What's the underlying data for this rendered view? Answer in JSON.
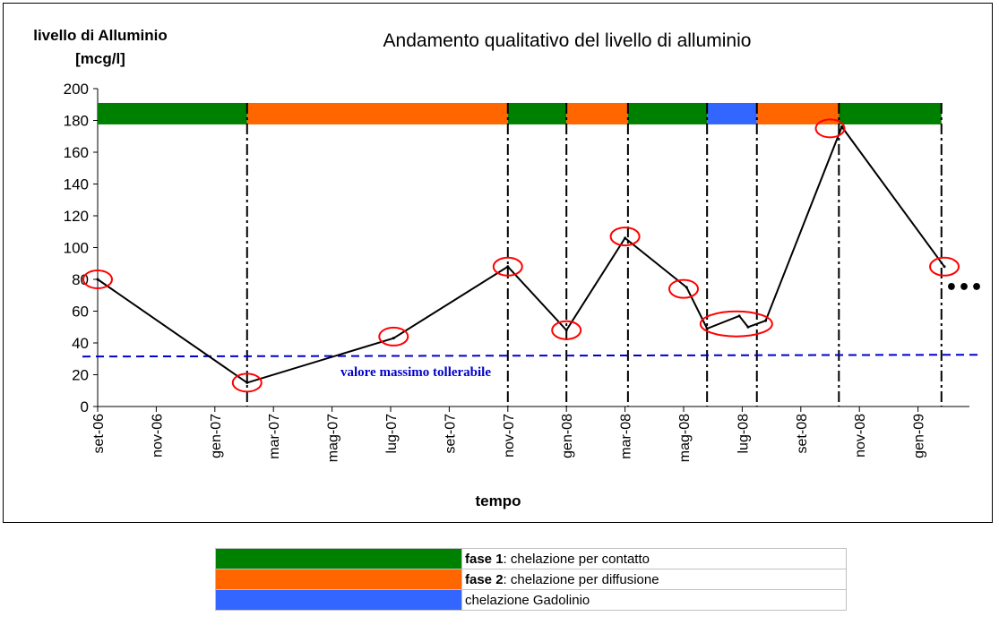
{
  "chart_data": {
    "type": "line",
    "title": "Andamento qualitativo del livello di alluminio",
    "ylabel_line1": "livello di Alluminio",
    "ylabel_line2": "[mcg/l]",
    "xlabel": "tempo",
    "ylim": [
      0,
      200
    ],
    "yticks": [
      0,
      20,
      40,
      60,
      80,
      100,
      120,
      140,
      160,
      180,
      200
    ],
    "xlim": [
      0,
      29.8
    ],
    "xticks": [
      {
        "x": 0,
        "label": "set-06"
      },
      {
        "x": 2,
        "label": "nov-06"
      },
      {
        "x": 4,
        "label": "gen-07"
      },
      {
        "x": 6,
        "label": "mar-07"
      },
      {
        "x": 8,
        "label": "mag-07"
      },
      {
        "x": 10,
        "label": "lug-07"
      },
      {
        "x": 12,
        "label": "set-07"
      },
      {
        "x": 14,
        "label": "nov-07"
      },
      {
        "x": 16,
        "label": "gen-08"
      },
      {
        "x": 18,
        "label": "mar-08"
      },
      {
        "x": 20,
        "label": "mag-08"
      },
      {
        "x": 22,
        "label": "lug-08"
      },
      {
        "x": 24,
        "label": "set-08"
      },
      {
        "x": 26,
        "label": "nov-08"
      },
      {
        "x": 28,
        "label": "gen-09"
      }
    ],
    "series": [
      {
        "x": [
          0,
          5.1,
          10.1,
          14.0,
          16.0,
          18.0,
          20.1,
          20.8,
          21.9,
          22.2,
          22.8,
          25.4,
          28.9
        ],
        "y": [
          80,
          15,
          43,
          88,
          48,
          106,
          75,
          49,
          57,
          50,
          54,
          176,
          88
        ],
        "color": "#000000"
      }
    ],
    "highlighted_points": [
      {
        "x": 0,
        "y": 80
      },
      {
        "x": 5.1,
        "y": 15
      },
      {
        "x": 10.1,
        "y": 44
      },
      {
        "x": 14.0,
        "y": 88
      },
      {
        "x": 16.0,
        "y": 48
      },
      {
        "x": 18.0,
        "y": 107
      },
      {
        "x": 20.0,
        "y": 74
      },
      {
        "x": 21.8,
        "y": 52,
        "wide": true
      },
      {
        "x": 25.0,
        "y": 175
      },
      {
        "x": 28.9,
        "y": 88
      }
    ],
    "threshold": {
      "y": 32,
      "label": "valore massimo tollerabile",
      "color": "#0000cc"
    },
    "phase_band": {
      "y": 182,
      "segments": [
        {
          "from": 0,
          "to": 5.1,
          "phase": "fase1"
        },
        {
          "from": 5.1,
          "to": 14.0,
          "phase": "fase2"
        },
        {
          "from": 14.0,
          "to": 16.0,
          "phase": "fase1"
        },
        {
          "from": 16.0,
          "to": 18.1,
          "phase": "fase2"
        },
        {
          "from": 18.1,
          "to": 20.8,
          "phase": "fase1"
        },
        {
          "from": 20.8,
          "to": 22.5,
          "phase": "gadolinio"
        },
        {
          "from": 22.5,
          "to": 25.3,
          "phase": "fase2"
        },
        {
          "from": 25.3,
          "to": 28.8,
          "phase": "fase1"
        }
      ],
      "boundaries": [
        5.1,
        14.0,
        16.0,
        18.1,
        20.8,
        22.5,
        25.3,
        28.8
      ]
    },
    "continuation_marker": "•••",
    "colors": {
      "fase1": "#008000",
      "fase2": "#ff6600",
      "gadolinio": "#3366ff",
      "circle": "#ff0000"
    }
  },
  "legend": [
    {
      "bold": "fase 1",
      "text": ": chelazione per contatto",
      "color": "#008000"
    },
    {
      "bold": "fase 2",
      "text": ": chelazione per diffusione",
      "color": "#ff6600"
    },
    {
      "bold": "",
      "text": "chelazione Gadolinio",
      "color": "#3366ff"
    }
  ]
}
